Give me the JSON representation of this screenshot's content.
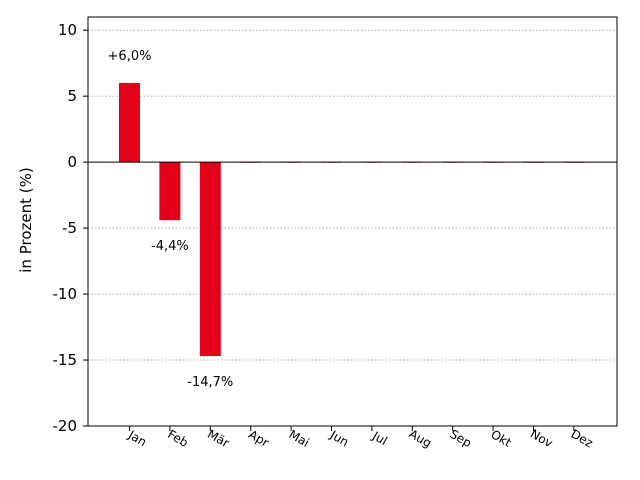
{
  "chart_data": {
    "type": "bar",
    "categories": [
      "Jan",
      "Feb",
      "Mär",
      "Apr",
      "Mai",
      "Jun",
      "Jul",
      "Aug",
      "Sep",
      "Okt",
      "Nov",
      "Dez"
    ],
    "values": [
      6.0,
      -4.4,
      -14.7,
      0,
      0,
      0,
      0,
      0,
      0,
      0,
      0,
      0
    ],
    "data_labels": [
      "+6,0%",
      "-4,4%",
      "-14,7%",
      "",
      "",
      "",
      "",
      "",
      "",
      "",
      "",
      ""
    ],
    "ylabel": "in Prozent (%)",
    "xlabel": "",
    "title": "",
    "ylim": [
      -20,
      11
    ],
    "yticks": [
      10,
      5,
      0,
      -5,
      -10,
      -15,
      -20
    ],
    "grid": "horizontal dotted",
    "bar_color": "#e2001a"
  }
}
